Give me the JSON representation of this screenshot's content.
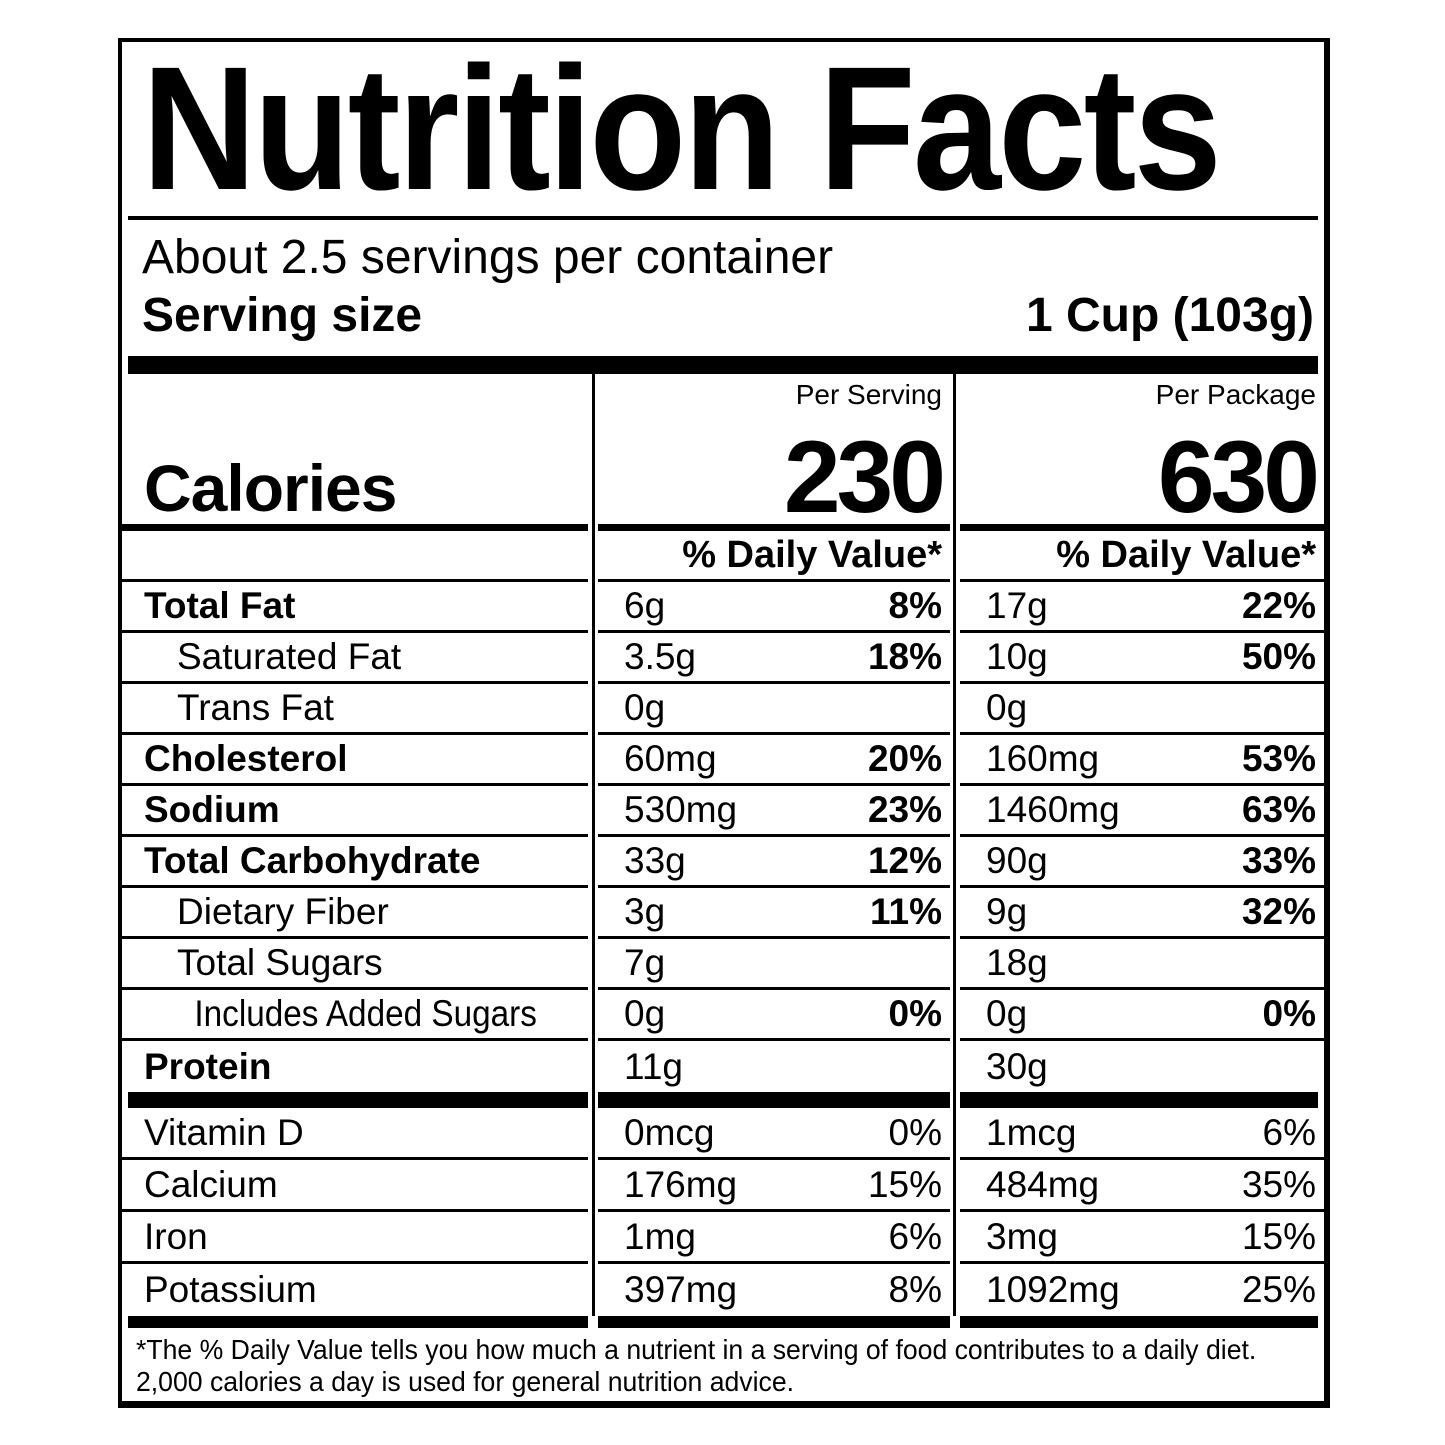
{
  "label": {
    "title": "Nutrition Facts",
    "servings_per_container": "About 2.5 servings per container",
    "serving_size_label": "Serving size",
    "serving_size_value": "1 Cup (103g)",
    "per_serving_header": "Per Serving",
    "per_package_header": "Per Package",
    "calories_label": "Calories",
    "calories_per_serving": "230",
    "calories_per_package": "630",
    "daily_value_header": "% Daily Value*",
    "footnote_line1": "*The % Daily Value tells you how much a nutrient in a serving of food contributes to a daily diet.",
    "footnote_line2": "2,000 calories a day is used for general nutrition advice."
  },
  "colors": {
    "text": "#000000",
    "background": "#ffffff"
  },
  "nutrients": [
    {
      "name": "Total Fat",
      "serving_amount": "6g",
      "serving_dv": "8%",
      "package_amount": "17g",
      "package_dv": "22%"
    },
    {
      "name": "Saturated Fat",
      "serving_amount": "3.5g",
      "serving_dv": "18%",
      "package_amount": "10g",
      "package_dv": "50%"
    },
    {
      "name": "Trans Fat",
      "serving_amount": "0g",
      "serving_dv": "",
      "package_amount": "0g",
      "package_dv": ""
    },
    {
      "name": "Cholesterol",
      "serving_amount": "60mg",
      "serving_dv": "20%",
      "package_amount": "160mg",
      "package_dv": "53%"
    },
    {
      "name": "Sodium",
      "serving_amount": "530mg",
      "serving_dv": "23%",
      "package_amount": "1460mg",
      "package_dv": "63%"
    },
    {
      "name": "Total Carbohydrate",
      "serving_amount": "33g",
      "serving_dv": "12%",
      "package_amount": "90g",
      "package_dv": "33%"
    },
    {
      "name": "Dietary Fiber",
      "serving_amount": "3g",
      "serving_dv": "11%",
      "package_amount": "9g",
      "package_dv": "32%"
    },
    {
      "name": "Total Sugars",
      "serving_amount": "7g",
      "serving_dv": "",
      "package_amount": "18g",
      "package_dv": ""
    },
    {
      "name": "Includes Added Sugars",
      "serving_amount": "0g",
      "serving_dv": "0%",
      "package_amount": "0g",
      "package_dv": "0%"
    },
    {
      "name": "Protein",
      "serving_amount": "11g",
      "serving_dv": "",
      "package_amount": "30g",
      "package_dv": ""
    }
  ],
  "micronutrients": [
    {
      "name": "Vitamin D",
      "serving_amount": "0mcg",
      "serving_dv": "0%",
      "package_amount": "1mcg",
      "package_dv": "6%"
    },
    {
      "name": "Calcium",
      "serving_amount": "176mg",
      "serving_dv": "15%",
      "package_amount": "484mg",
      "package_dv": "35%"
    },
    {
      "name": "Iron",
      "serving_amount": "1mg",
      "serving_dv": "6%",
      "package_amount": "3mg",
      "package_dv": "15%"
    },
    {
      "name": "Potassium",
      "serving_amount": "397mg",
      "serving_dv": "8%",
      "package_amount": "1092mg",
      "package_dv": "25%"
    }
  ]
}
